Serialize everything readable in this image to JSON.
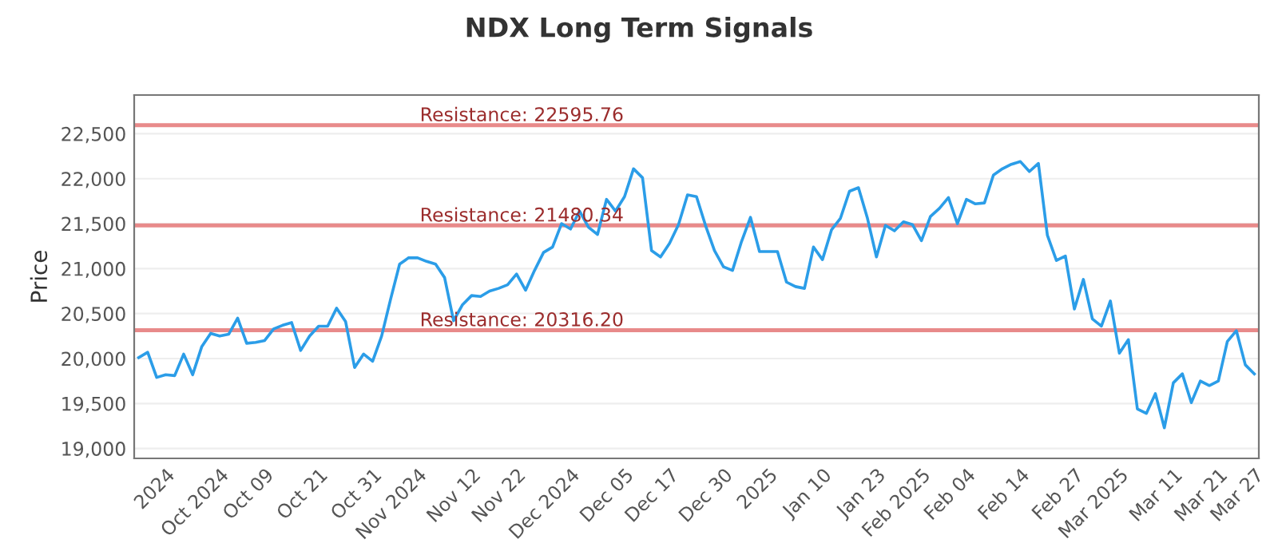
{
  "chart_data": {
    "type": "line",
    "title": "NDX Long Term Signals",
    "ylabel": "Price",
    "categories": [
      null,
      null,
      null,
      "2024",
      null,
      null,
      null,
      null,
      null,
      "Oct 2024",
      null,
      null,
      null,
      null,
      "Oct 09",
      null,
      null,
      null,
      null,
      null,
      "Oct 21",
      null,
      null,
      null,
      null,
      null,
      "Oct 31",
      null,
      null,
      null,
      null,
      "Nov 2024",
      null,
      null,
      null,
      null,
      null,
      "Nov 12",
      null,
      null,
      null,
      null,
      "Nov 22",
      null,
      null,
      null,
      null,
      null,
      "Dec 2024",
      null,
      null,
      null,
      null,
      null,
      "Dec 05",
      null,
      null,
      null,
      null,
      "Dec 17",
      null,
      null,
      null,
      null,
      null,
      "Dec 30",
      null,
      null,
      null,
      null,
      "2025",
      null,
      null,
      null,
      null,
      null,
      "Jan 10",
      null,
      null,
      null,
      null,
      null,
      "Jan 23",
      null,
      null,
      null,
      null,
      "Feb 2025",
      null,
      null,
      null,
      null,
      "Feb 04",
      null,
      null,
      null,
      null,
      null,
      "Feb 14",
      null,
      null,
      null,
      null,
      null,
      "Feb 27",
      null,
      null,
      null,
      null,
      "Mar 2025",
      null,
      null,
      null,
      null,
      null,
      "Mar 11",
      null,
      null,
      null,
      null,
      "Mar 21",
      null,
      null,
      null,
      "Mar 27"
    ],
    "series": [
      {
        "color": "#2b9de8",
        "values": [
          20010,
          20070,
          19790,
          19820,
          19810,
          20050,
          19820,
          20130,
          20280,
          20250,
          20270,
          20450,
          20170,
          20180,
          20200,
          20330,
          20370,
          20400,
          20090,
          20250,
          20360,
          20360,
          20560,
          20410,
          19900,
          20050,
          19970,
          20250,
          20660,
          21050,
          21120,
          21120,
          21080,
          21050,
          20900,
          20420,
          20600,
          20700,
          20690,
          20750,
          20780,
          20820,
          20940,
          20760,
          20980,
          21180,
          21240,
          21500,
          21440,
          21640,
          21460,
          21380,
          21770,
          21640,
          21800,
          22110,
          22010,
          21200,
          21130,
          21280,
          21490,
          21820,
          21800,
          21480,
          21200,
          21020,
          20980,
          21300,
          21570,
          21190,
          21190,
          21190,
          20850,
          20800,
          20780,
          21240,
          21100,
          21430,
          21560,
          21860,
          21900,
          21560,
          21130,
          21480,
          21420,
          21520,
          21490,
          21310,
          21580,
          21670,
          21790,
          21500,
          21770,
          21720,
          21730,
          22040,
          22110,
          22160,
          22190,
          22080,
          22170,
          21370,
          21090,
          21140,
          20550,
          20880,
          20440,
          20360,
          20640,
          20060,
          20210,
          19440,
          19390,
          19610,
          19230,
          19730,
          19830,
          19510,
          19750,
          19700,
          19750,
          20190,
          20310,
          19930,
          19830
        ]
      }
    ],
    "ylim": [
      18890,
      22930
    ],
    "yticks": [
      {
        "value": 19000,
        "label": "19,000"
      },
      {
        "value": 19500,
        "label": "19,500"
      },
      {
        "value": 20000,
        "label": "20,000"
      },
      {
        "value": 20500,
        "label": "20,500"
      },
      {
        "value": 21000,
        "label": "21,000"
      },
      {
        "value": 21500,
        "label": "21,500"
      },
      {
        "value": 22000,
        "label": "22,000"
      },
      {
        "value": 22500,
        "label": "22,500"
      }
    ],
    "grid": "y",
    "marker": "none",
    "line_style": "solid",
    "ref_lines": [
      {
        "axis": "y",
        "value": 22595.76,
        "label": "Resistance: 22595.76",
        "color": "#e88a8a"
      },
      {
        "axis": "y",
        "value": 21480.34,
        "label": "Resistance: 21480.34",
        "color": "#e88a8a"
      },
      {
        "axis": "y",
        "value": 20316.2,
        "label": "Resistance: 20316.20",
        "color": "#e88a8a"
      }
    ]
  }
}
